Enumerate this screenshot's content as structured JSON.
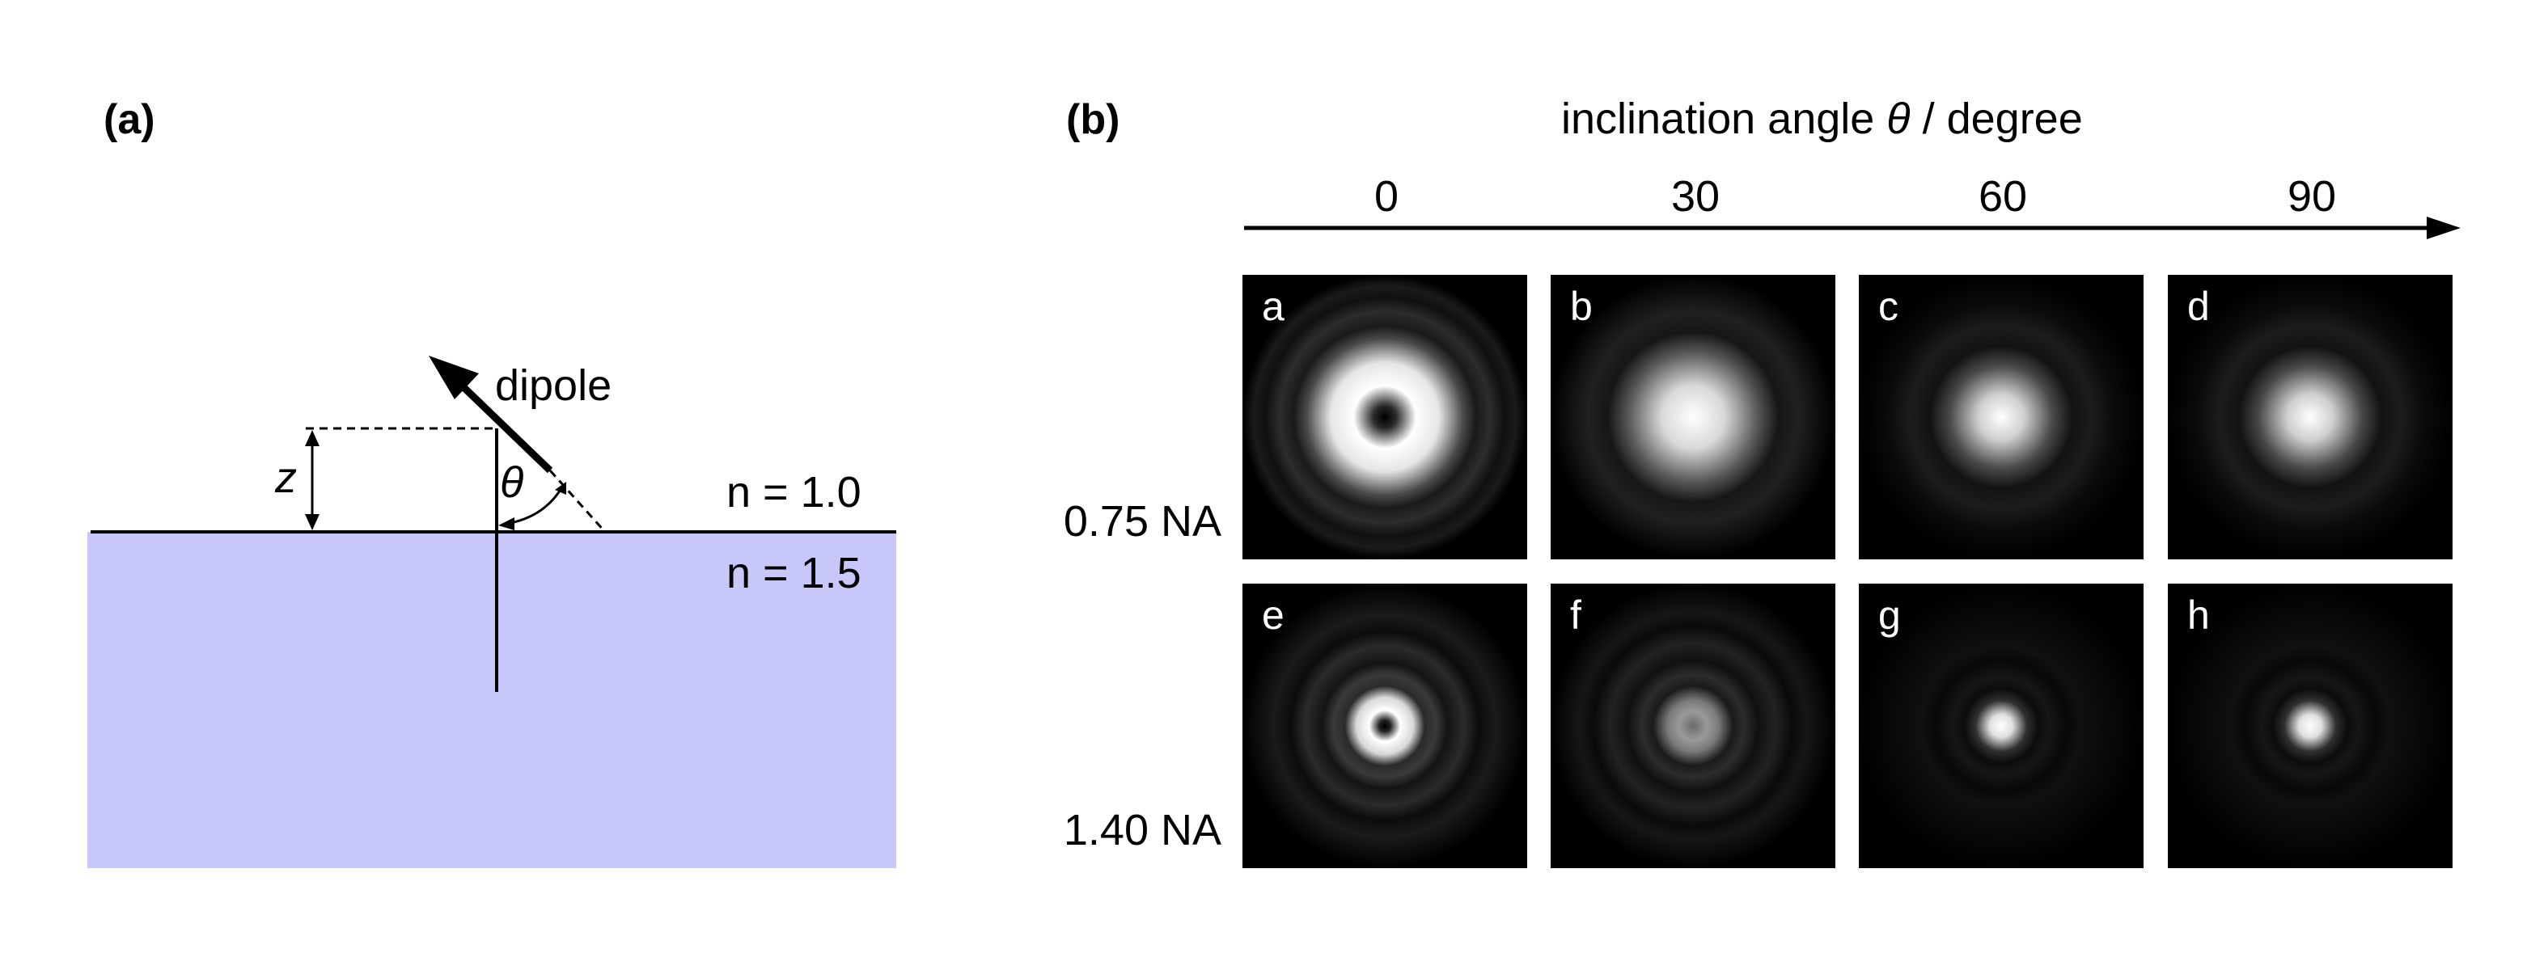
{
  "panel_a": {
    "label": "(a)",
    "dipole_label": "dipole",
    "z_label": "z",
    "theta_label": "θ",
    "n_top": "n = 1.0",
    "n_bottom": "n = 1.5",
    "substrate_color": "#c7c7fa"
  },
  "panel_b": {
    "label": "(b)",
    "axis_title_prefix": "inclination angle ",
    "axis_title_symbol": "θ",
    "axis_title_suffix": " / degree",
    "angles": [
      "0",
      "30",
      "60",
      "90"
    ],
    "rows": [
      {
        "na": "0.75 NA",
        "tiles": [
          "a",
          "b",
          "c",
          "d"
        ]
      },
      {
        "na": "1.40 NA",
        "tiles": [
          "e",
          "f",
          "g",
          "h"
        ]
      }
    ]
  }
}
